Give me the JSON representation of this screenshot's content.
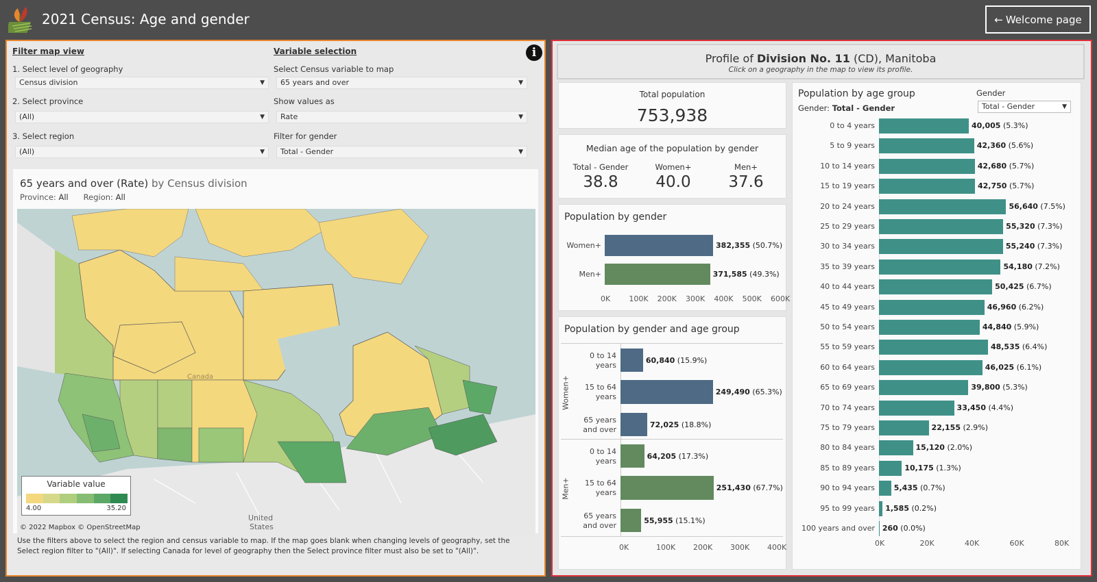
{
  "header": {
    "title": "2021 Census: Age and gender",
    "welcome_label": "Welcome page"
  },
  "filters": {
    "filter_map_view": "Filter map view",
    "variable_selection": "Variable selection",
    "level_label": "1. Select level of geography",
    "level_value": "Census division",
    "province_label": "2. Select province",
    "province_value": "(All)",
    "region_label": "3. Select region",
    "region_value": "(All)",
    "variable_label": "Select Census variable to map",
    "variable_value": "65 years and over",
    "values_label": "Show values as",
    "values_value": "Rate",
    "gender_label": "Filter for gender",
    "gender_value": "Total - Gender"
  },
  "map": {
    "title_main": "65 years and over (Rate)",
    "title_rest": "by Census division",
    "province_label": "Province:",
    "province_value": "All",
    "region_label": "Region:",
    "region_value": "All",
    "legend_title": "Variable value",
    "legend_min": "4.00",
    "legend_max": "35.20",
    "legend_colors": [
      "#f4d87e",
      "#d6d98a",
      "#b0cf7e",
      "#86bd72",
      "#5ca867",
      "#2f8a52"
    ],
    "credit": "© 2022 Mapbox © OpenStreetMap",
    "place_canada": "Canada",
    "place_us_1": "United",
    "place_us_2": "States",
    "footnote": "Use the filters above to select the region and census variable to map. If the map goes blank when changing levels of geography, set the Select region filter to \"(All)\". If selecting Canada for level of geography then the Select province filter must also be set to \"(All)\"."
  },
  "profile": {
    "title_prefix": "Profile of",
    "title_name": "Division No. 11",
    "title_suffix": "(CD), Manitoba",
    "hint": "Click on a geography in the map to view its profile."
  },
  "total_population": {
    "label": "Total population",
    "value": "753,938"
  },
  "median_age": {
    "title": "Median age of the population by gender",
    "items": [
      {
        "label": "Total - Gender",
        "value": "38.8"
      },
      {
        "label": "Women+",
        "value": "40.0"
      },
      {
        "label": "Men+",
        "value": "37.6"
      }
    ]
  },
  "gender_chart": {
    "title": "Population by gender",
    "ticks": [
      "0K",
      "100K",
      "200K",
      "300K",
      "400K",
      "500K",
      "600K"
    ],
    "bars": [
      {
        "label": "Women+",
        "value": 382355,
        "value_text": "382,355",
        "pct": "(50.7%)",
        "color": "#4e6a85"
      },
      {
        "label": "Men+",
        "value": 371585,
        "value_text": "371,585",
        "pct": "(49.3%)",
        "color": "#628a5e"
      }
    ]
  },
  "gender_age_chart": {
    "title": "Population by gender and age group",
    "ticks": [
      "0K",
      "100K",
      "200K",
      "300K",
      "400K"
    ],
    "groups": [
      {
        "name": "Women+",
        "color": "#4e6a85",
        "bars": [
          {
            "label1": "0 to 14",
            "label2": "years",
            "value": 60840,
            "value_text": "60,840",
            "pct": "(15.9%)"
          },
          {
            "label1": "15 to 64",
            "label2": "years",
            "value": 249490,
            "value_text": "249,490",
            "pct": "(65.3%)"
          },
          {
            "label1": "65 years",
            "label2": "and over",
            "value": 72025,
            "value_text": "72,025",
            "pct": "(18.8%)"
          }
        ]
      },
      {
        "name": "Men+",
        "color": "#628a5e",
        "bars": [
          {
            "label1": "0 to 14",
            "label2": "years",
            "value": 64205,
            "value_text": "64,205",
            "pct": "(17.3%)"
          },
          {
            "label1": "15 to 64",
            "label2": "years",
            "value": 251430,
            "value_text": "251,430",
            "pct": "(67.7%)"
          },
          {
            "label1": "65 years",
            "label2": "and over",
            "value": 55955,
            "value_text": "55,955",
            "pct": "(15.1%)"
          }
        ]
      }
    ]
  },
  "age_chart": {
    "title": "Population by age group",
    "gender_text_label": "Gender:",
    "gender_text_value": "Total - Gender",
    "gender_select_label": "Gender",
    "gender_select_value": "Total - Gender",
    "color": "#3f9188",
    "ticks": [
      "0K",
      "20K",
      "40K",
      "60K",
      "80K"
    ],
    "bars": [
      {
        "label": "0 to 4 years",
        "value": 40005,
        "value_text": "40,005",
        "pct": "(5.3%)"
      },
      {
        "label": "5 to 9 years",
        "value": 42360,
        "value_text": "42,360",
        "pct": "(5.6%)"
      },
      {
        "label": "10 to 14 years",
        "value": 42680,
        "value_text": "42,680",
        "pct": "(5.7%)"
      },
      {
        "label": "15 to 19 years",
        "value": 42750,
        "value_text": "42,750",
        "pct": "(5.7%)"
      },
      {
        "label": "20 to 24 years",
        "value": 56640,
        "value_text": "56,640",
        "pct": "(7.5%)"
      },
      {
        "label": "25 to 29 years",
        "value": 55320,
        "value_text": "55,320",
        "pct": "(7.3%)"
      },
      {
        "label": "30 to 34 years",
        "value": 55240,
        "value_text": "55,240",
        "pct": "(7.3%)"
      },
      {
        "label": "35 to 39 years",
        "value": 54180,
        "value_text": "54,180",
        "pct": "(7.2%)"
      },
      {
        "label": "40 to 44 years",
        "value": 50425,
        "value_text": "50,425",
        "pct": "(6.7%)"
      },
      {
        "label": "45 to 49 years",
        "value": 46960,
        "value_text": "46,960",
        "pct": "(6.2%)"
      },
      {
        "label": "50 to 54 years",
        "value": 44840,
        "value_text": "44,840",
        "pct": "(5.9%)"
      },
      {
        "label": "55 to 59 years",
        "value": 48535,
        "value_text": "48,535",
        "pct": "(6.4%)"
      },
      {
        "label": "60 to 64 years",
        "value": 46025,
        "value_text": "46,025",
        "pct": "(6.1%)"
      },
      {
        "label": "65 to 69 years",
        "value": 39800,
        "value_text": "39,800",
        "pct": "(5.3%)"
      },
      {
        "label": "70 to 74 years",
        "value": 33450,
        "value_text": "33,450",
        "pct": "(4.4%)"
      },
      {
        "label": "75 to 79 years",
        "value": 22155,
        "value_text": "22,155",
        "pct": "(2.9%)"
      },
      {
        "label": "80 to 84 years",
        "value": 15120,
        "value_text": "15,120",
        "pct": "(2.0%)"
      },
      {
        "label": "85 to 89 years",
        "value": 10175,
        "value_text": "10,175",
        "pct": "(1.3%)"
      },
      {
        "label": "90 to 94 years",
        "value": 5435,
        "value_text": "5,435",
        "pct": "(0.7%)"
      },
      {
        "label": "95 to 99 years",
        "value": 1585,
        "value_text": "1,585",
        "pct": "(0.2%)"
      },
      {
        "label": "100 years and over",
        "value": 260,
        "value_text": "260",
        "pct": "(0.0%)"
      }
    ]
  },
  "chart_data": [
    {
      "type": "bar",
      "title": "Population by gender",
      "categories": [
        "Women+",
        "Men+"
      ],
      "values": [
        382355,
        371585
      ],
      "xlim": [
        0,
        600000
      ]
    },
    {
      "type": "bar",
      "title": "Population by gender and age group",
      "categories": [
        "0 to 14 years",
        "15 to 64 years",
        "65 years and over"
      ],
      "series": [
        {
          "name": "Women+",
          "values": [
            60840,
            249490,
            72025
          ]
        },
        {
          "name": "Men+",
          "values": [
            64205,
            251430,
            55955
          ]
        }
      ],
      "xlim": [
        0,
        400000
      ]
    },
    {
      "type": "bar",
      "title": "Population by age group",
      "categories": [
        "0 to 4 years",
        "5 to 9 years",
        "10 to 14 years",
        "15 to 19 years",
        "20 to 24 years",
        "25 to 29 years",
        "30 to 34 years",
        "35 to 39 years",
        "40 to 44 years",
        "45 to 49 years",
        "50 to 54 years",
        "55 to 59 years",
        "60 to 64 years",
        "65 to 69 years",
        "70 to 74 years",
        "75 to 79 years",
        "80 to 84 years",
        "85 to 89 years",
        "90 to 94 years",
        "95 to 99 years",
        "100 years and over"
      ],
      "values": [
        40005,
        42360,
        42680,
        42750,
        56640,
        55320,
        55240,
        54180,
        50425,
        46960,
        44840,
        48535,
        46025,
        39800,
        33450,
        22155,
        15120,
        10175,
        5435,
        1585,
        260
      ],
      "xlim": [
        0,
        80000
      ]
    }
  ]
}
